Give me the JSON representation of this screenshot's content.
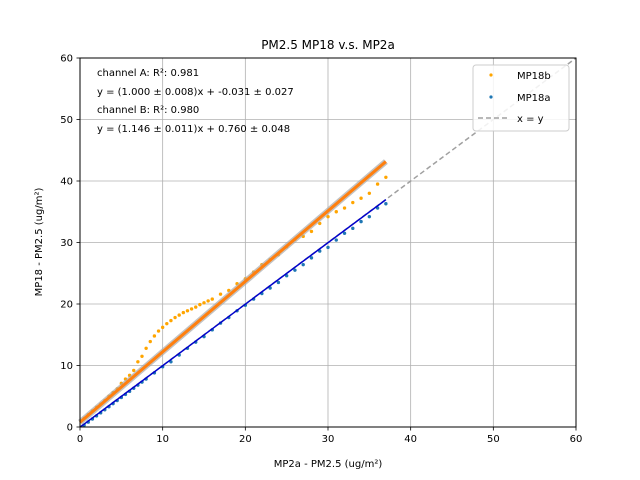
{
  "chart_data": {
    "type": "scatter",
    "title": "PM2.5 MP18 v.s. MP2a",
    "xlabel": "MP2a - PM2.5 (ug/m²)",
    "ylabel": "MP18 - PM2.5 (ug/m²)",
    "xlim": [
      0,
      60
    ],
    "ylim": [
      0,
      60
    ],
    "xticks": [
      "0",
      "10",
      "20",
      "30",
      "40",
      "50",
      "60"
    ],
    "yticks": [
      "0",
      "10",
      "20",
      "30",
      "40",
      "50",
      "60"
    ],
    "grid": true,
    "legend_position": "top-right",
    "annotations": [
      "channel A: R²: 0.981",
      "y = (1.000 ± 0.008)x + -0.031 ± 0.027",
      "channel B: R²: 0.980",
      "y = (1.146 ± 0.011)x + 0.760 ± 0.048"
    ],
    "series": [
      {
        "name": "MP18b",
        "color": "#ffa500",
        "marker": "point",
        "x": [
          0.5,
          1,
          1.5,
          2,
          2.5,
          3,
          3.5,
          4,
          4.5,
          5,
          5.5,
          6,
          6.5,
          7,
          7.5,
          8,
          8.5,
          9,
          9.5,
          10,
          10.5,
          11,
          11.5,
          12,
          12.5,
          13,
          13.5,
          14,
          14.5,
          15,
          15.5,
          16,
          17,
          18,
          19,
          20,
          21,
          22,
          23,
          24,
          25,
          26,
          27,
          28,
          29,
          30,
          31,
          32,
          33,
          34,
          35,
          36,
          37
        ],
        "y": [
          1.4,
          2.0,
          2.6,
          3.2,
          3.7,
          4.3,
          5.0,
          5.6,
          6.2,
          7.1,
          7.8,
          8.4,
          9.2,
          10.6,
          11.5,
          12.8,
          13.9,
          14.8,
          15.6,
          16.2,
          16.8,
          17.3,
          17.8,
          18.2,
          18.6,
          18.9,
          19.2,
          19.5,
          19.9,
          20.2,
          20.5,
          20.8,
          21.6,
          22.2,
          23.3,
          24.1,
          25.2,
          26.4,
          27.2,
          28.0,
          29.3,
          30.5,
          31.0,
          31.8,
          33.1,
          34.2,
          35.0,
          35.6,
          36.5,
          37.2,
          38.0,
          39.5,
          40.6
        ]
      },
      {
        "name": "MP18a",
        "color": "#1f77b4",
        "marker": "point",
        "x": [
          0.5,
          1,
          1.5,
          2,
          2.5,
          3,
          3.5,
          4,
          4.5,
          5,
          5.5,
          6,
          6.5,
          7,
          7.5,
          8,
          9,
          10,
          11,
          12,
          13,
          14,
          15,
          16,
          17,
          18,
          19,
          20,
          21,
          22,
          23,
          24,
          25,
          26,
          27,
          28,
          29,
          30,
          31,
          32,
          33,
          34,
          35,
          36,
          37
        ],
        "y": [
          0.3,
          0.8,
          1.3,
          1.8,
          2.3,
          2.8,
          3.3,
          3.8,
          4.3,
          4.8,
          5.3,
          5.8,
          6.3,
          6.8,
          7.3,
          7.8,
          8.8,
          9.8,
          10.6,
          11.7,
          12.8,
          13.8,
          14.7,
          15.8,
          16.9,
          17.8,
          18.9,
          19.8,
          20.8,
          21.7,
          22.6,
          23.5,
          24.6,
          25.5,
          26.4,
          27.5,
          28.6,
          29.2,
          30.4,
          31.5,
          32.3,
          33.4,
          34.2,
          35.6,
          36.3
        ]
      },
      {
        "name": "x = y",
        "color": "#a0a0a0",
        "style": "dashed",
        "x": [
          0,
          60
        ],
        "y": [
          0,
          60
        ]
      }
    ],
    "fit_lines": [
      {
        "channel": "A",
        "slope": 1.0,
        "intercept": -0.031,
        "color": "#0000cc",
        "x": [
          0,
          37
        ]
      },
      {
        "channel": "B",
        "slope": 1.146,
        "intercept": 0.76,
        "color": "#ff7f0e",
        "x": [
          0,
          37
        ]
      }
    ]
  }
}
